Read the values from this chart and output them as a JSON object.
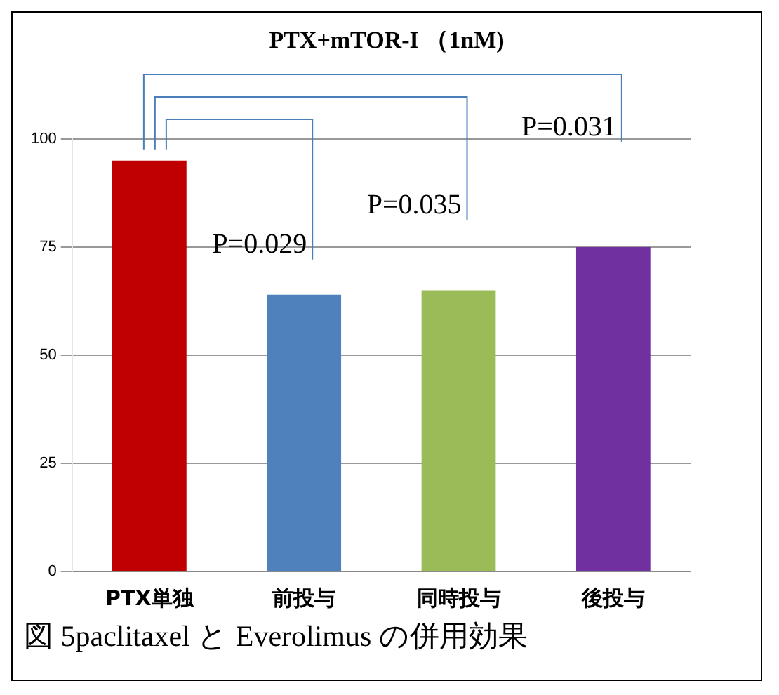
{
  "chart_data": {
    "type": "bar",
    "title": "PTX+mTOR-I （1nM)",
    "categories": [
      "PTX単独",
      "前投与",
      "同時投与",
      "後投与"
    ],
    "values": [
      95,
      64,
      65,
      75
    ],
    "colors": [
      "#c00000",
      "#4f81bd",
      "#9bbb59",
      "#7030a0"
    ],
    "ylim": [
      0,
      100
    ],
    "yticks": [
      0,
      25,
      50,
      75,
      100
    ],
    "grid": "y",
    "annotations": [
      "P=0.029",
      "P=0.035",
      "P=0.031",
      "図 5paclitaxel と Everolimus の併用効果"
    ]
  }
}
